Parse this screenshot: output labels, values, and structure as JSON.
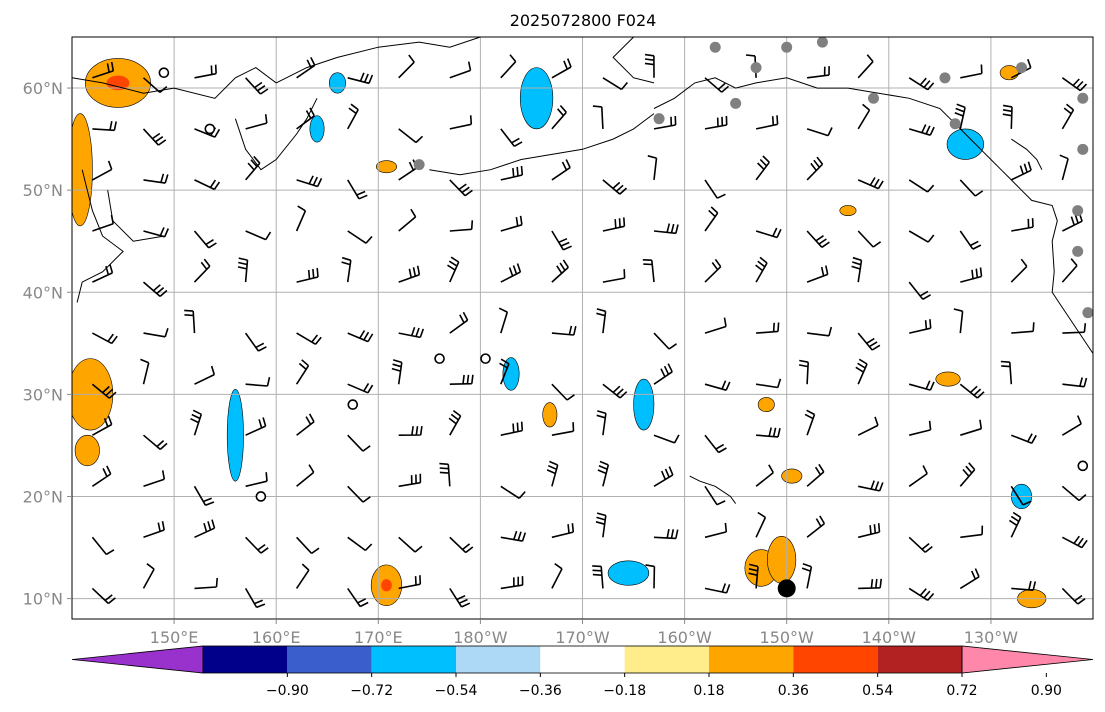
{
  "title": "2025072800 F024",
  "map": {
    "lon_range": [
      140,
      240
    ],
    "lat_range": [
      8,
      65
    ],
    "lat_ticks": [
      {
        "value": 10,
        "label": "10°N"
      },
      {
        "value": 20,
        "label": "20°N"
      },
      {
        "value": 30,
        "label": "30°N"
      },
      {
        "value": 40,
        "label": "40°N"
      },
      {
        "value": 50,
        "label": "50°N"
      },
      {
        "value": 60,
        "label": "60°N"
      }
    ],
    "lon_ticks": [
      {
        "value": 150,
        "label": "150°E"
      },
      {
        "value": 160,
        "label": "160°E"
      },
      {
        "value": 170,
        "label": "170°E"
      },
      {
        "value": 180,
        "label": "180°W"
      },
      {
        "value": 190,
        "label": "170°W"
      },
      {
        "value": 200,
        "label": "160°W"
      },
      {
        "value": 210,
        "label": "150°W"
      },
      {
        "value": 220,
        "label": "140°W"
      },
      {
        "value": 230,
        "label": "130°W"
      }
    ],
    "grid": true,
    "tick_color": "#888888"
  },
  "colorbar": {
    "orientation": "horizontal",
    "extend": "both",
    "colors": [
      "#9932CC",
      "#00008B",
      "#3A5FCD",
      "#00BFFF",
      "#ADD8F6",
      "#FFFFFF",
      "#FFEC8B",
      "#FFA500",
      "#FF4500",
      "#B22222",
      "#FF88AA"
    ],
    "labels": [
      "−0.90",
      "−0.72",
      "−0.54",
      "−0.36",
      "−0.18",
      "0.18",
      "0.36",
      "0.54",
      "0.72",
      "0.90"
    ]
  },
  "chart_data": {
    "type": "heatmap",
    "title": "2025072800 F024",
    "xlim": [
      140,
      240
    ],
    "ylim": [
      8,
      65
    ],
    "orange_blobs": [
      {
        "lon": 144.5,
        "lat": 60.5,
        "rx": 3.2,
        "ry": 2.4,
        "core": "#FF4500"
      },
      {
        "lon": 140.8,
        "lat": 52.0,
        "rx": 1.2,
        "ry": 5.5
      },
      {
        "lon": 141.8,
        "lat": 30.0,
        "rx": 2.2,
        "ry": 3.5
      },
      {
        "lon": 141.5,
        "lat": 24.5,
        "rx": 1.2,
        "ry": 1.5
      },
      {
        "lon": 170.8,
        "lat": 11.3,
        "rx": 1.5,
        "ry": 2.0,
        "core": "#FF4500"
      },
      {
        "lon": 207.5,
        "lat": 13.0,
        "rx": 1.6,
        "ry": 1.8
      },
      {
        "lon": 209.5,
        "lat": 13.8,
        "rx": 1.4,
        "ry": 2.3
      },
      {
        "lon": 210.5,
        "lat": 22.0,
        "rx": 1.0,
        "ry": 0.7
      },
      {
        "lon": 208.0,
        "lat": 29.0,
        "rx": 0.8,
        "ry": 0.7
      },
      {
        "lon": 186.8,
        "lat": 28.0,
        "rx": 0.7,
        "ry": 1.2
      },
      {
        "lon": 234.0,
        "lat": 10.0,
        "rx": 1.4,
        "ry": 0.9
      },
      {
        "lon": 225.8,
        "lat": 31.5,
        "rx": 1.2,
        "ry": 0.7
      },
      {
        "lon": 231.8,
        "lat": 61.5,
        "rx": 0.9,
        "ry": 0.7
      },
      {
        "lon": 170.8,
        "lat": 52.3,
        "rx": 1.0,
        "ry": 0.6
      },
      {
        "lon": 216.0,
        "lat": 48.0,
        "rx": 0.8,
        "ry": 0.5
      }
    ],
    "blue_blobs": [
      {
        "lon": 185.5,
        "lat": 59.0,
        "rx": 1.6,
        "ry": 3.0
      },
      {
        "lon": 156.0,
        "lat": 26.0,
        "rx": 0.8,
        "ry": 4.5
      },
      {
        "lon": 183.0,
        "lat": 32.0,
        "rx": 0.8,
        "ry": 1.6
      },
      {
        "lon": 196.0,
        "lat": 29.0,
        "rx": 1.0,
        "ry": 2.5
      },
      {
        "lon": 194.5,
        "lat": 12.5,
        "rx": 2.0,
        "ry": 1.2
      },
      {
        "lon": 227.5,
        "lat": 54.5,
        "rx": 1.8,
        "ry": 1.5
      },
      {
        "lon": 233.0,
        "lat": 20.0,
        "rx": 1.0,
        "ry": 1.2
      },
      {
        "lon": 164.0,
        "lat": 56.0,
        "rx": 0.7,
        "ry": 1.3
      },
      {
        "lon": 166.0,
        "lat": 60.5,
        "rx": 0.8,
        "ry": 1.0
      }
    ],
    "gray_dots": [
      {
        "lon": 203.0,
        "lat": 64.0
      },
      {
        "lon": 207.0,
        "lat": 62.0
      },
      {
        "lon": 210.0,
        "lat": 64.0
      },
      {
        "lon": 213.5,
        "lat": 64.5
      },
      {
        "lon": 218.5,
        "lat": 59.0
      },
      {
        "lon": 225.5,
        "lat": 61.0
      },
      {
        "lon": 226.5,
        "lat": 56.5
      },
      {
        "lon": 233.0,
        "lat": 62.0
      },
      {
        "lon": 239.0,
        "lat": 59.0
      },
      {
        "lon": 239.0,
        "lat": 54.0
      },
      {
        "lon": 238.5,
        "lat": 48.0
      },
      {
        "lon": 238.5,
        "lat": 44.0
      },
      {
        "lon": 239.5,
        "lat": 38.0
      },
      {
        "lon": 205.0,
        "lat": 58.5
      },
      {
        "lon": 197.5,
        "lat": 57.0
      },
      {
        "lon": 174.0,
        "lat": 52.5
      }
    ],
    "open_circles": [
      {
        "lon": 149.0,
        "lat": 61.5
      },
      {
        "lon": 153.5,
        "lat": 56.0
      },
      {
        "lon": 176.0,
        "lat": 33.5
      },
      {
        "lon": 180.5,
        "lat": 33.5
      },
      {
        "lon": 167.5,
        "lat": 29.0
      },
      {
        "lon": 158.5,
        "lat": 20.0
      },
      {
        "lon": 239.0,
        "lat": 23.0
      }
    ],
    "solid_dot": {
      "lon": 210.0,
      "lat": 11.0
    }
  }
}
